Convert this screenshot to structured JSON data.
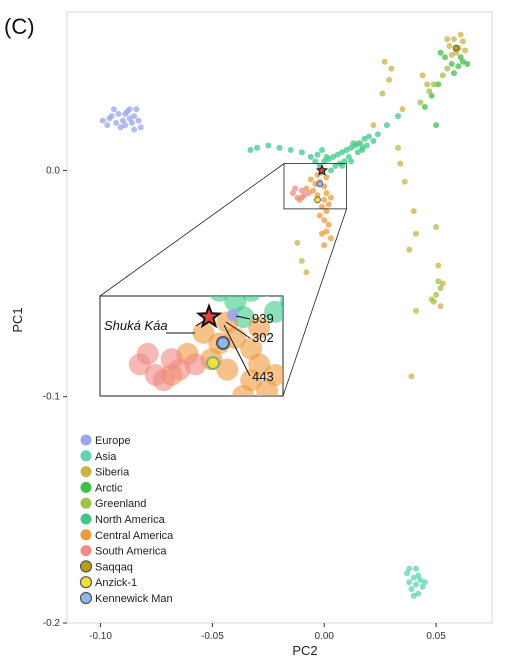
{
  "panel_label": "(C)",
  "colors": {
    "Europe": "#9aa6ec",
    "Asia": "#5fd3b6",
    "Siberia": "#c9b347",
    "Arctic": "#3fbf4a",
    "Greenland": "#9fc24a",
    "North America": "#3ec98a",
    "Central America": "#ec9a3c",
    "South America": "#f08a86",
    "Saqqaq": "#b7a012",
    "Anzick-1": "#f2df3a",
    "Kennewick Man": "#8fb7e8"
  },
  "chart_data": {
    "type": "scatter",
    "xlabel": "PC2",
    "ylabel": "PC1",
    "xlim": [
      -0.115,
      0.075
    ],
    "ylim": [
      -0.2,
      0.07
    ],
    "xticks": [
      -0.1,
      -0.05,
      0.0,
      0.05
    ],
    "xtick_labels": [
      "-0.10",
      "-0.05",
      "0.00",
      "0.05"
    ],
    "yticks": [
      -0.2,
      -0.1,
      0.0
    ],
    "ytick_labels": [
      "-0.2",
      "-0.1",
      "0.0"
    ],
    "grid": false,
    "legend_position": "bottom-left",
    "series": [
      {
        "name": "Europe",
        "points": [
          [
            -0.099,
            0.022
          ],
          [
            -0.097,
            0.02
          ],
          [
            -0.095,
            0.024
          ],
          [
            -0.093,
            0.021
          ],
          [
            -0.092,
            0.025
          ],
          [
            -0.09,
            0.022
          ],
          [
            -0.089,
            0.02
          ],
          [
            -0.088,
            0.026
          ],
          [
            -0.087,
            0.023
          ],
          [
            -0.086,
            0.021
          ],
          [
            -0.085,
            0.024
          ],
          [
            -0.084,
            0.027
          ],
          [
            -0.083,
            0.022
          ],
          [
            -0.082,
            0.019
          ],
          [
            -0.094,
            0.027
          ],
          [
            -0.091,
            0.019
          ],
          [
            -0.096,
            0.023
          ],
          [
            -0.085,
            0.018
          ],
          [
            -0.089,
            0.025
          ],
          [
            -0.087,
            0.027
          ]
        ]
      },
      {
        "name": "Asia",
        "points": [
          [
            0.037,
            -0.178
          ],
          [
            0.038,
            -0.182
          ],
          [
            0.039,
            -0.185
          ],
          [
            0.04,
            -0.18
          ],
          [
            0.041,
            -0.183
          ],
          [
            0.042,
            -0.187
          ],
          [
            0.043,
            -0.181
          ],
          [
            0.044,
            -0.184
          ],
          [
            0.04,
            -0.188
          ],
          [
            0.038,
            -0.176
          ],
          [
            0.042,
            -0.179
          ],
          [
            0.045,
            -0.182
          ],
          [
            0.041,
            -0.176
          ]
        ]
      },
      {
        "name": "Siberia",
        "points": [
          [
            0.027,
            0.048
          ],
          [
            0.03,
            0.045
          ],
          [
            0.029,
            0.04
          ],
          [
            0.026,
            0.034
          ],
          [
            0.035,
            0.027
          ],
          [
            0.033,
            0.01
          ],
          [
            0.034,
            0.003
          ],
          [
            0.036,
            -0.005
          ],
          [
            0.04,
            -0.018
          ],
          [
            0.041,
            -0.028
          ],
          [
            0.038,
            -0.035
          ],
          [
            0.05,
            -0.025
          ],
          [
            0.051,
            -0.042
          ],
          [
            0.053,
            -0.05
          ],
          [
            0.048,
            -0.057
          ],
          [
            0.052,
            -0.06
          ],
          [
            0.039,
            -0.091
          ],
          [
            0.041,
            -0.062
          ],
          [
            -0.012,
            -0.032
          ],
          [
            -0.01,
            -0.04
          ],
          [
            -0.008,
            -0.045
          ],
          [
            0.022,
            0.02
          ],
          [
            0.015,
            0.012
          ],
          [
            0.044,
            0.042
          ],
          [
            0.046,
            0.038
          ],
          [
            0.056,
            0.055
          ],
          [
            0.058,
            0.058
          ],
          [
            0.06,
            0.054
          ],
          [
            0.057,
            0.051
          ],
          [
            0.062,
            0.057
          ],
          [
            0.059,
            0.052
          ],
          [
            0.061,
            0.06
          ],
          [
            0.055,
            0.058
          ],
          [
            0.063,
            0.053
          ]
        ]
      },
      {
        "name": "Arctic",
        "points": [
          [
            0.057,
            0.047
          ],
          [
            0.06,
            0.046
          ],
          [
            0.062,
            0.048
          ],
          [
            0.064,
            0.047
          ],
          [
            0.058,
            0.043
          ],
          [
            0.051,
            0.038
          ],
          [
            0.048,
            0.033
          ],
          [
            0.045,
            0.028
          ],
          [
            0.05,
            0.02
          ],
          [
            0.052,
            0.052
          ],
          [
            0.054,
            0.05
          ],
          [
            0.061,
            0.05
          ]
        ]
      },
      {
        "name": "Greenland",
        "points": [
          [
            0.047,
            0.035
          ],
          [
            0.049,
            0.038
          ],
          [
            0.053,
            0.042
          ],
          [
            0.055,
            0.045
          ],
          [
            0.043,
            0.03
          ],
          [
            0.05,
            -0.055
          ],
          [
            0.052,
            -0.052
          ],
          [
            0.049,
            -0.058
          ],
          [
            0.051,
            -0.049
          ]
        ]
      },
      {
        "name": "North America",
        "points": [
          [
            -0.03,
            0.01
          ],
          [
            -0.025,
            0.011
          ],
          [
            -0.02,
            0.01
          ],
          [
            -0.015,
            0.009
          ],
          [
            -0.01,
            0.008
          ],
          [
            -0.006,
            0.006
          ],
          [
            -0.004,
            0.004
          ],
          [
            -0.002,
            0.002
          ],
          [
            0.0,
            0.004
          ],
          [
            0.002,
            0.005
          ],
          [
            0.004,
            0.006
          ],
          [
            0.006,
            0.007
          ],
          [
            0.008,
            0.008
          ],
          [
            0.01,
            0.009
          ],
          [
            0.012,
            0.01
          ],
          [
            0.014,
            0.011
          ],
          [
            0.016,
            0.012
          ],
          [
            0.018,
            0.014
          ],
          [
            0.02,
            0.015
          ],
          [
            0.022,
            0.013
          ],
          [
            0.015,
            0.008
          ],
          [
            0.011,
            0.006
          ],
          [
            0.005,
            0.002
          ],
          [
            -0.001,
            -0.001
          ],
          [
            0.003,
            0.0
          ],
          [
            0.007,
            0.003
          ],
          [
            0.009,
            0.004
          ],
          [
            0.013,
            0.012
          ],
          [
            0.017,
            0.01
          ],
          [
            0.001,
            0.006
          ],
          [
            -0.003,
            0.007
          ],
          [
            0.019,
            0.011
          ],
          [
            0.024,
            0.016
          ],
          [
            0.028,
            0.02
          ],
          [
            0.033,
            0.024
          ],
          [
            -0.033,
            0.009
          ],
          [
            -0.001,
            0.009
          ],
          [
            0.008,
            0.002
          ],
          [
            0.012,
            0.004
          ],
          [
            0.017,
            0.009
          ]
        ]
      },
      {
        "name": "Central America",
        "points": [
          [
            -0.006,
            -0.004
          ],
          [
            -0.004,
            -0.006
          ],
          [
            -0.002,
            -0.005
          ],
          [
            0.0,
            -0.007
          ],
          [
            0.001,
            -0.01
          ],
          [
            0.0,
            -0.013
          ],
          [
            -0.001,
            -0.016
          ],
          [
            0.001,
            -0.018
          ],
          [
            -0.002,
            -0.02
          ],
          [
            0.0,
            -0.022
          ],
          [
            0.002,
            -0.024
          ],
          [
            0.001,
            -0.027
          ],
          [
            0.003,
            -0.03
          ],
          [
            0.002,
            -0.015
          ],
          [
            -0.003,
            -0.011
          ],
          [
            -0.005,
            -0.009
          ],
          [
            -0.003,
            -0.002
          ],
          [
            0.001,
            -0.003
          ],
          [
            -0.008,
            -0.008
          ],
          [
            -0.01,
            -0.012
          ],
          [
            0.003,
            -0.012
          ],
          [
            -0.001,
            -0.028
          ],
          [
            0.0,
            -0.033
          ]
        ]
      },
      {
        "name": "South America",
        "points": [
          [
            -0.014,
            -0.01
          ],
          [
            -0.012,
            -0.012
          ],
          [
            -0.01,
            -0.009
          ],
          [
            -0.009,
            -0.011
          ],
          [
            -0.011,
            -0.013
          ],
          [
            -0.007,
            -0.01
          ],
          [
            -0.013,
            -0.008
          ]
        ]
      },
      {
        "name": "Saqqaq",
        "points": [
          [
            0.059,
            0.054
          ]
        ]
      },
      {
        "name": "Anzick-1",
        "points": [
          [
            -0.003,
            -0.013
          ]
        ]
      },
      {
        "name": "Kennewick Man",
        "points": [
          [
            -0.002,
            -0.006
          ]
        ]
      }
    ],
    "annotations": {
      "star": {
        "label": "Shuká Káa",
        "x": -0.001,
        "y": 0.0
      },
      "zoom_box": {
        "x": [
          -0.018,
          0.01
        ],
        "y": [
          -0.017,
          0.003
        ]
      },
      "inset_labels": [
        "939",
        "302",
        "443"
      ]
    }
  }
}
